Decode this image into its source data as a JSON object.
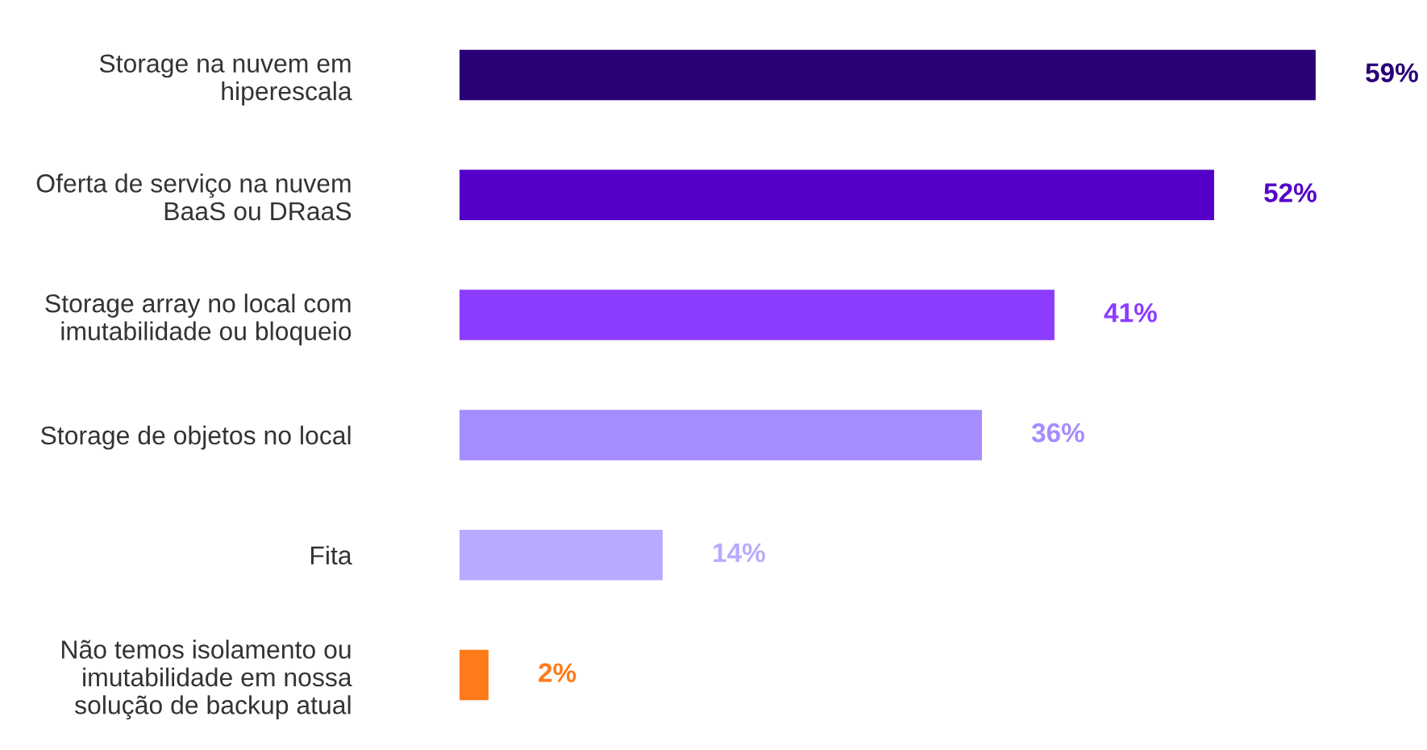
{
  "chart_data": {
    "type": "bar",
    "orientation": "horizontal",
    "categories": [
      "Storage na nuvem em\nhiperescala",
      "Oferta de serviço na nuvem\nBaaS ou DRaaS",
      "Storage array no local com\nimutabilidade ou bloqueio",
      "Storage de objetos no local",
      "Fita",
      "Não temos isolamento ou\nimutabilidade em nossa\nsolução de backup atual"
    ],
    "values": [
      59,
      52,
      41,
      36,
      14,
      2
    ],
    "colors": [
      "#2a0077",
      "#5500c8",
      "#8c3cff",
      "#a58cff",
      "#b9aaff",
      "#ff7a1a"
    ],
    "value_labels": [
      "59%",
      "52%",
      "41%",
      "36%",
      "14%",
      "2%"
    ],
    "grid": false,
    "tick_labels": "y"
  }
}
